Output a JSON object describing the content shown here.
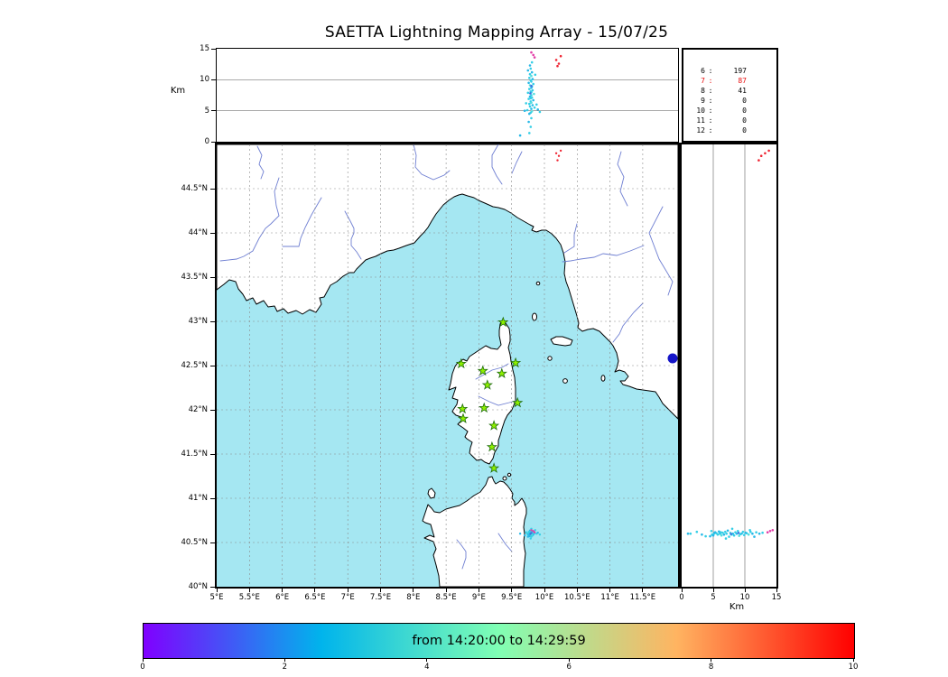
{
  "title": "SAETTA Lightning Mapping Array - 15/07/25",
  "colors": {
    "sea": "#a5e7f2",
    "land": "#ffffff",
    "coast": "#000000",
    "river": "#6f7fd2",
    "lake": "#1515c8",
    "grid": "#8a8a8a",
    "panel_grid": "#777777",
    "station_fill": "#8ef000",
    "station_stroke": "#1e6b0e",
    "highlight_red": "#e81010"
  },
  "stats": {
    "rows": [
      {
        "ch": "6",
        "sep": ":",
        "value": "197",
        "highlight": false
      },
      {
        "ch": "7",
        "sep": ":",
        "value": "87",
        "highlight": true
      },
      {
        "ch": "8",
        "sep": ":",
        "value": "41",
        "highlight": false
      },
      {
        "ch": "9",
        "sep": ":",
        "value": "0",
        "highlight": false
      },
      {
        "ch": "10",
        "sep": ":",
        "value": "0",
        "highlight": false
      },
      {
        "ch": "11",
        "sep": ":",
        "value": "0",
        "highlight": false
      },
      {
        "ch": "12",
        "sep": ":",
        "value": "0",
        "highlight": false
      }
    ]
  },
  "chart_data": {
    "type": "scatter",
    "title": "SAETTA Lightning Mapping Array - 15/07/25",
    "time_window": "from 14:20:00 to 14:29:59",
    "alt_axis": {
      "label": "Km",
      "range": [
        0,
        15
      ],
      "ticks": [
        [
          0,
          "0"
        ],
        [
          5,
          "5"
        ],
        [
          10,
          "10"
        ],
        [
          15,
          "15"
        ]
      ],
      "gridlines": [
        5,
        10
      ]
    },
    "map_axis": {
      "lon_range": [
        5,
        12.04
      ],
      "lat_range": [
        40,
        45
      ],
      "lon_ticks": [
        [
          5,
          "5°E"
        ],
        [
          5.5,
          "5.5°E"
        ],
        [
          6,
          "6°E"
        ],
        [
          6.5,
          "6.5°E"
        ],
        [
          7,
          "7°E"
        ],
        [
          7.5,
          "7.5°E"
        ],
        [
          8,
          "8°E"
        ],
        [
          8.5,
          "8.5°E"
        ],
        [
          9,
          "9°E"
        ],
        [
          9.5,
          "9.5°E"
        ],
        [
          10,
          "10°E"
        ],
        [
          10.5,
          "10.5°E"
        ],
        [
          11,
          "11°E"
        ],
        [
          11.5,
          "11.5°E"
        ]
      ],
      "lat_ticks": [
        [
          40,
          "40°N"
        ],
        [
          40.5,
          "40.5°N"
        ],
        [
          41,
          "41°N"
        ],
        [
          41.5,
          "41.5°N"
        ],
        [
          42,
          "42°N"
        ],
        [
          42.5,
          "42.5°N"
        ],
        [
          43,
          "43°N"
        ],
        [
          43.5,
          "43.5°N"
        ],
        [
          44,
          "44°N"
        ],
        [
          44.5,
          "44.5°N"
        ]
      ],
      "grid": "dashed"
    },
    "colorbar": {
      "range": [
        0,
        10
      ],
      "ticks": [
        [
          0,
          "0"
        ],
        [
          2,
          "2"
        ],
        [
          4,
          "4"
        ],
        [
          6,
          "6"
        ],
        [
          8,
          "8"
        ],
        [
          10,
          "10"
        ]
      ],
      "stops": [
        "#8000ff",
        "#00b4ec",
        "#80ffb4",
        "#ffb461",
        "#ff0000"
      ]
    },
    "palette": [
      "#35cfe6",
      "#28b9e8",
      "#3f6fe0",
      "#e23fa8",
      "#ef2533",
      "#56dede"
    ],
    "sources_lon_lat_altkm_ci": [
      [
        9.79,
        40.615,
        11.8,
        0
      ],
      [
        9.81,
        40.6,
        11.2,
        1
      ],
      [
        9.78,
        40.62,
        10.9,
        0
      ],
      [
        9.8,
        40.59,
        10.6,
        5
      ],
      [
        9.77,
        40.605,
        10.3,
        0
      ],
      [
        9.82,
        40.61,
        10.1,
        1
      ],
      [
        9.79,
        40.585,
        9.9,
        0
      ],
      [
        9.8,
        40.62,
        9.7,
        0
      ],
      [
        9.76,
        40.6,
        9.5,
        1
      ],
      [
        9.83,
        40.595,
        9.3,
        0
      ],
      [
        9.78,
        40.575,
        9.1,
        5
      ],
      [
        9.81,
        40.63,
        8.9,
        0
      ],
      [
        9.8,
        40.6,
        8.7,
        1
      ],
      [
        9.77,
        40.615,
        8.5,
        0
      ],
      [
        9.82,
        40.58,
        8.3,
        0
      ],
      [
        9.79,
        40.6,
        8.1,
        1
      ],
      [
        9.75,
        40.59,
        7.9,
        0
      ],
      [
        9.84,
        40.61,
        7.7,
        5
      ],
      [
        9.8,
        40.565,
        7.5,
        0
      ],
      [
        9.78,
        40.635,
        7.3,
        1
      ],
      [
        9.81,
        40.6,
        7.1,
        0
      ],
      [
        9.76,
        40.62,
        6.9,
        0
      ],
      [
        9.83,
        40.59,
        6.7,
        1
      ],
      [
        9.79,
        40.61,
        6.5,
        0
      ],
      [
        9.8,
        40.58,
        6.3,
        5
      ],
      [
        9.77,
        40.6,
        6.1,
        0
      ],
      [
        9.82,
        40.625,
        5.9,
        1
      ],
      [
        9.78,
        40.59,
        5.7,
        0
      ],
      [
        9.85,
        40.605,
        5.5,
        0
      ],
      [
        9.8,
        40.615,
        5.3,
        1
      ],
      [
        9.74,
        40.6,
        5.1,
        0
      ],
      [
        9.81,
        40.585,
        4.9,
        5
      ],
      [
        9.79,
        40.63,
        4.7,
        0
      ],
      [
        9.77,
        40.57,
        4.5,
        1
      ],
      [
        9.88,
        40.6,
        6.0,
        0
      ],
      [
        9.9,
        40.61,
        5.2,
        1
      ],
      [
        9.93,
        40.59,
        4.8,
        0
      ],
      [
        9.72,
        40.615,
        6.2,
        0
      ],
      [
        9.7,
        40.58,
        5.0,
        1
      ],
      [
        9.8,
        40.655,
        8.0,
        0
      ],
      [
        9.79,
        40.545,
        7.0,
        0
      ],
      [
        9.78,
        40.6,
        12.3,
        1
      ],
      [
        9.81,
        40.61,
        12.8,
        0
      ],
      [
        9.8,
        40.57,
        3.8,
        0
      ],
      [
        9.76,
        40.59,
        3.2,
        1
      ],
      [
        9.79,
        40.62,
        2.4,
        0
      ],
      [
        9.77,
        40.6,
        1.4,
        0
      ],
      [
        9.63,
        40.6,
        1.0,
        1
      ],
      [
        9.86,
        40.64,
        10.8,
        0
      ],
      [
        9.75,
        40.565,
        11.5,
        1
      ],
      [
        9.8,
        40.608,
        9.0,
        2
      ],
      [
        9.785,
        40.597,
        7.8,
        2
      ],
      [
        9.83,
        40.63,
        14.0,
        3
      ],
      [
        9.85,
        40.615,
        13.6,
        3
      ],
      [
        9.8,
        40.64,
        14.4,
        3
      ],
      [
        10.18,
        44.9,
        13.2,
        4
      ],
      [
        10.22,
        44.87,
        12.6,
        4
      ],
      [
        10.25,
        44.93,
        13.8,
        4
      ],
      [
        10.2,
        44.82,
        12.2,
        4
      ]
    ],
    "stations_lonlat": [
      [
        9.37,
        42.99
      ],
      [
        8.73,
        42.52
      ],
      [
        9.06,
        42.44
      ],
      [
        9.35,
        42.41
      ],
      [
        9.56,
        42.53
      ],
      [
        9.13,
        42.28
      ],
      [
        9.59,
        42.08
      ],
      [
        8.75,
        42.01
      ],
      [
        9.08,
        42.02
      ],
      [
        8.76,
        41.9
      ],
      [
        9.23,
        41.82
      ],
      [
        9.2,
        41.58
      ],
      [
        9.23,
        41.34
      ]
    ],
    "station_counts": [
      [
        "6",
        197
      ],
      [
        "7",
        87
      ],
      [
        "8",
        41
      ],
      [
        "9",
        0
      ],
      [
        "10",
        0
      ],
      [
        "11",
        0
      ],
      [
        "12",
        0
      ]
    ]
  }
}
